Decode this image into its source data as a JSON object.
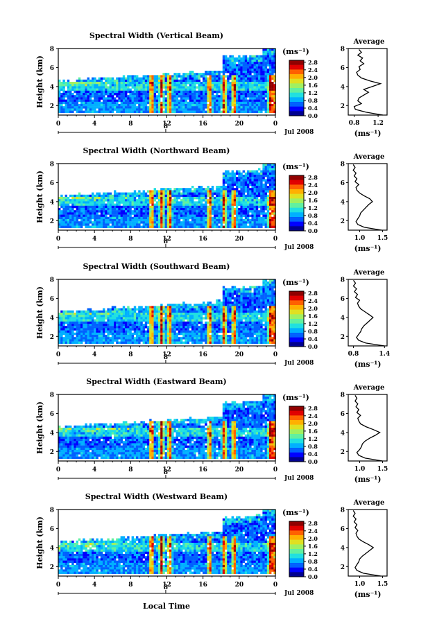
{
  "figure": {
    "xlabel_bottom": "Local Time"
  },
  "colors": {
    "colormap": [
      "#00008f",
      "#0000ff",
      "#0060ff",
      "#00b0ff",
      "#20e0e0",
      "#60f0a0",
      "#a0f060",
      "#e0e020",
      "#ffb000",
      "#ff6000",
      "#e00000",
      "#900000"
    ],
    "line": "#000000",
    "axis": "#000000"
  },
  "chart_data": [
    {
      "type": "heatmap",
      "title": "Spectral Width (Vertical Beam)",
      "ylabel": "Height (km)",
      "x_ticks": [
        "0",
        "4",
        "8",
        "12",
        "16",
        "20",
        "0"
      ],
      "date_label": "Jul 2008",
      "date_axis_ticks": [
        "8"
      ],
      "y_ticks": [
        "2",
        "4",
        "6",
        "8"
      ],
      "ylim": [
        1,
        8
      ],
      "xlim": [
        0,
        24
      ],
      "colorbar": {
        "unit": "(ms⁻¹)",
        "ticks": [
          "0.0",
          "0.4",
          "0.8",
          "1.2",
          "1.6",
          "2.0",
          "2.4",
          "2.8"
        ],
        "range": [
          0,
          2.9
        ]
      },
      "profile": {
        "title": "Average",
        "x_ticks": [
          "0.8",
          "1.2"
        ],
        "xlim": [
          0.7,
          1.35
        ],
        "xlabel": "(ms⁻¹)",
        "y_ticks": [
          "2",
          "4",
          "6",
          "8"
        ],
        "height": [
          1.0,
          1.3,
          1.6,
          1.9,
          2.2,
          2.5,
          2.8,
          3.1,
          3.4,
          3.7,
          4.0,
          4.3,
          4.6,
          4.9,
          5.2,
          5.5,
          5.8,
          6.1,
          6.4,
          6.7,
          7.0,
          7.3,
          7.6,
          7.9
        ],
        "width": [
          1.28,
          1.0,
          0.82,
          0.8,
          0.92,
          0.86,
          0.88,
          0.96,
          1.04,
          0.96,
          1.1,
          1.24,
          1.06,
          0.92,
          0.86,
          0.84,
          0.9,
          0.88,
          0.96,
          0.9,
          0.94,
          0.86,
          0.92,
          0.88
        ]
      }
    },
    {
      "type": "heatmap",
      "title": "Spectral Width (Northward Beam)",
      "ylabel": "Height (km)",
      "x_ticks": [
        "0",
        "4",
        "8",
        "12",
        "16",
        "20",
        "0"
      ],
      "date_label": "Jul 2008",
      "date_axis_ticks": [
        "8"
      ],
      "y_ticks": [
        "2",
        "4",
        "6",
        "8"
      ],
      "ylim": [
        1,
        8
      ],
      "xlim": [
        0,
        24
      ],
      "colorbar": {
        "unit": "(ms⁻¹)",
        "ticks": [
          "0.0",
          "0.4",
          "0.8",
          "1.2",
          "1.6",
          "2.0",
          "2.4",
          "2.8"
        ],
        "range": [
          0,
          2.9
        ]
      },
      "profile": {
        "title": "Average",
        "x_ticks": [
          "1.0",
          "1.5"
        ],
        "xlim": [
          0.75,
          1.6
        ],
        "xlabel": "(ms⁻¹)",
        "y_ticks": [
          "2",
          "4",
          "6",
          "8"
        ],
        "height": [
          1.0,
          1.3,
          1.6,
          1.9,
          2.2,
          2.5,
          2.8,
          3.1,
          3.4,
          3.7,
          4.0,
          4.3,
          4.6,
          4.9,
          5.2,
          5.5,
          5.8,
          6.1,
          6.4,
          6.7,
          7.0,
          7.3,
          7.6,
          7.9
        ],
        "width": [
          1.48,
          1.1,
          0.96,
          0.92,
          0.96,
          1.0,
          1.02,
          1.08,
          1.14,
          1.2,
          1.28,
          1.22,
          1.1,
          1.0,
          0.94,
          0.92,
          0.98,
          0.9,
          0.94,
          0.88,
          0.92,
          0.86,
          0.9,
          0.86
        ]
      }
    },
    {
      "type": "heatmap",
      "title": "Spectral Width (Southward Beam)",
      "ylabel": "Height (km)",
      "x_ticks": [
        "0",
        "4",
        "8",
        "12",
        "16",
        "20",
        "0"
      ],
      "date_label": "Jul 2008",
      "date_axis_ticks": [
        "8"
      ],
      "y_ticks": [
        "2",
        "4",
        "6",
        "8"
      ],
      "ylim": [
        1,
        8
      ],
      "xlim": [
        0,
        24
      ],
      "colorbar": {
        "unit": "(ms⁻¹)",
        "ticks": [
          "0.0",
          "0.4",
          "0.8",
          "1.2",
          "1.6",
          "2.0",
          "2.4",
          "2.8"
        ],
        "range": [
          0,
          2.9
        ]
      },
      "profile": {
        "title": "Average",
        "x_ticks": [
          "0.8",
          "1.4"
        ],
        "xlim": [
          0.7,
          1.45
        ],
        "xlabel": "(ms⁻¹)",
        "y_ticks": [
          "2",
          "4",
          "6",
          "8"
        ],
        "height": [
          1.0,
          1.3,
          1.6,
          1.9,
          2.2,
          2.5,
          2.8,
          3.1,
          3.4,
          3.7,
          4.0,
          4.3,
          4.6,
          4.9,
          5.2,
          5.5,
          5.8,
          6.1,
          6.4,
          6.7,
          7.0,
          7.3,
          7.6,
          7.9
        ],
        "width": [
          1.4,
          1.04,
          0.9,
          0.86,
          0.9,
          0.94,
          0.96,
          1.0,
          1.06,
          1.12,
          1.18,
          1.1,
          1.02,
          0.94,
          0.9,
          0.88,
          0.92,
          0.84,
          0.88,
          0.82,
          0.86,
          0.8,
          0.84,
          0.8
        ]
      }
    },
    {
      "type": "heatmap",
      "title": "Spectral Width (Eastward Beam)",
      "ylabel": "Height (km)",
      "x_ticks": [
        "0",
        "4",
        "8",
        "12",
        "16",
        "20",
        "0"
      ],
      "date_label": "Jul 2008",
      "date_axis_ticks": [
        "8"
      ],
      "y_ticks": [
        "2",
        "4",
        "6",
        "8"
      ],
      "ylim": [
        1,
        8
      ],
      "xlim": [
        0,
        24
      ],
      "colorbar": {
        "unit": "(ms⁻¹)",
        "ticks": [
          "0.0",
          "0.4",
          "0.8",
          "1.2",
          "1.6",
          "2.0",
          "2.4",
          "2.8"
        ],
        "range": [
          0,
          2.9
        ]
      },
      "profile": {
        "title": "Average",
        "x_ticks": [
          "1.0",
          "1.5"
        ],
        "xlim": [
          0.75,
          1.6
        ],
        "xlabel": "(ms⁻¹)",
        "y_ticks": [
          "2",
          "4",
          "6",
          "8"
        ],
        "height": [
          1.0,
          1.3,
          1.6,
          1.9,
          2.2,
          2.5,
          2.8,
          3.1,
          3.4,
          3.7,
          4.0,
          4.3,
          4.6,
          4.9,
          5.2,
          5.5,
          5.8,
          6.1,
          6.4,
          6.7,
          7.0,
          7.3,
          7.6,
          7.9
        ],
        "width": [
          1.5,
          1.12,
          0.98,
          0.94,
          1.0,
          1.04,
          1.06,
          1.12,
          1.22,
          1.34,
          1.44,
          1.3,
          1.14,
          1.02,
          0.98,
          0.96,
          1.02,
          0.94,
          0.98,
          0.92,
          0.96,
          0.9,
          0.94,
          0.9
        ]
      }
    },
    {
      "type": "heatmap",
      "title": "Spectral Width (Westward Beam)",
      "ylabel": "Height (km)",
      "x_ticks": [
        "0",
        "4",
        "8",
        "12",
        "16",
        "20",
        "0"
      ],
      "date_label": "Jul 2008",
      "date_axis_ticks": [
        "8"
      ],
      "y_ticks": [
        "2",
        "4",
        "6",
        "8"
      ],
      "ylim": [
        1,
        8
      ],
      "xlim": [
        0,
        24
      ],
      "colorbar": {
        "unit": "(ms⁻¹)",
        "ticks": [
          "0.0",
          "0.4",
          "0.8",
          "1.2",
          "1.6",
          "2.0",
          "2.4",
          "2.8"
        ],
        "range": [
          0,
          2.9
        ]
      },
      "profile": {
        "title": "Average",
        "x_ticks": [
          "1.0",
          "1.5"
        ],
        "xlim": [
          0.75,
          1.6
        ],
        "xlabel": "(ms⁻¹)",
        "y_ticks": [
          "2",
          "4",
          "6",
          "8"
        ],
        "height": [
          1.0,
          1.3,
          1.6,
          1.9,
          2.2,
          2.5,
          2.8,
          3.1,
          3.4,
          3.7,
          4.0,
          4.3,
          4.6,
          4.9,
          5.2,
          5.5,
          5.8,
          6.1,
          6.4,
          6.7,
          7.0,
          7.3,
          7.6,
          7.9
        ],
        "width": [
          1.46,
          1.08,
          0.94,
          0.9,
          0.94,
          0.98,
          1.0,
          1.06,
          1.14,
          1.22,
          1.3,
          1.2,
          1.08,
          0.98,
          0.94,
          0.92,
          0.96,
          0.9,
          0.94,
          0.88,
          0.92,
          0.86,
          0.9,
          0.86
        ]
      }
    }
  ]
}
